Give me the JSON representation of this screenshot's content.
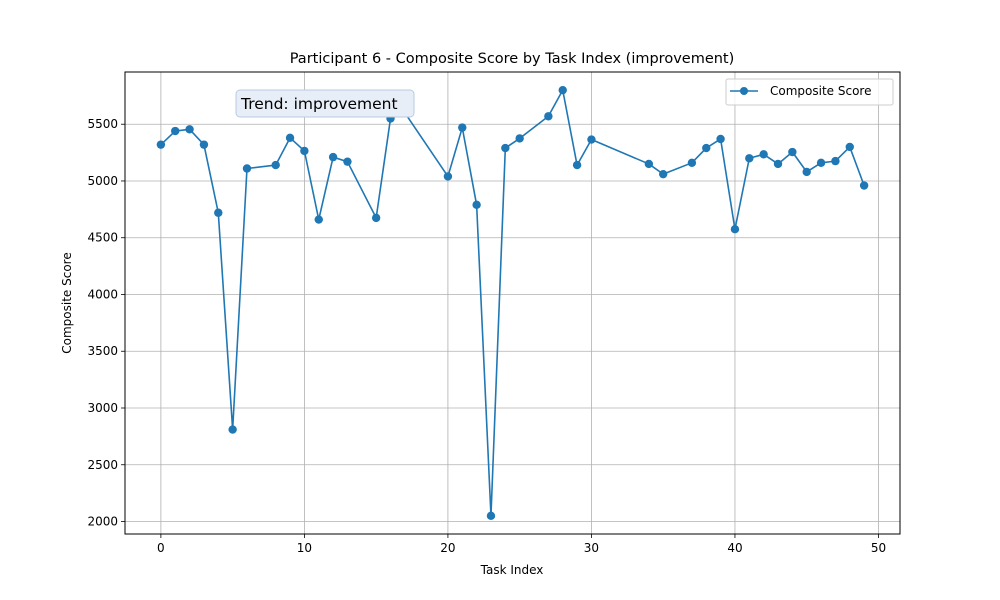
{
  "chart_data": {
    "type": "line",
    "title": "Participant 6 - Composite Score by Task Index (improvement)",
    "xlabel": "Task Index",
    "ylabel": "Composite Score",
    "xlim": [
      -2.5,
      51.5
    ],
    "ylim": [
      1890,
      5960
    ],
    "xticks": [
      0,
      10,
      20,
      30,
      40,
      50
    ],
    "yticks": [
      2000,
      2500,
      3000,
      3500,
      4000,
      4500,
      5000,
      5500
    ],
    "grid": true,
    "legend_position": "top-right",
    "annotation": "Trend: improvement",
    "series": [
      {
        "name": "Composite Score",
        "color": "#1f77b4",
        "marker": "circle",
        "x": [
          0,
          1,
          2,
          3,
          4,
          5,
          6,
          8,
          9,
          10,
          11,
          12,
          13,
          15,
          16,
          17,
          20,
          21,
          22,
          23,
          24,
          25,
          27,
          28,
          29,
          30,
          34,
          35,
          37,
          38,
          39,
          40,
          41,
          42,
          43,
          44,
          45,
          46,
          47,
          48,
          49
        ],
        "y": [
          5320,
          5440,
          5455,
          5320,
          4720,
          2810,
          5110,
          5140,
          5380,
          5265,
          4660,
          5210,
          5170,
          4675,
          5550,
          5600,
          5040,
          5470,
          4790,
          2050,
          5290,
          5375,
          5570,
          5800,
          5140,
          5365,
          5150,
          5060,
          5160,
          5290,
          5370,
          4575,
          5200,
          5235,
          5150,
          5255,
          5080,
          5160,
          5175,
          5300,
          4960
        ]
      }
    ]
  }
}
